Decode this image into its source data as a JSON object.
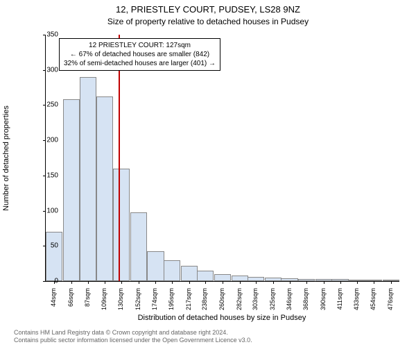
{
  "title_main": "12, PRIESTLEY COURT, PUDSEY, LS28 9NZ",
  "title_sub": "Size of property relative to detached houses in Pudsey",
  "ylabel": "Number of detached properties",
  "xlabel": "Distribution of detached houses by size in Pudsey",
  "footer_line1": "Contains HM Land Registry data © Crown copyright and database right 2024.",
  "footer_line2": "Contains public sector information licensed under the Open Government Licence v3.0.",
  "chart": {
    "type": "histogram",
    "background_color": "#ffffff",
    "bar_fill": "#d6e3f3",
    "bar_border": "#888888",
    "axis_color": "#000000",
    "marker_color": "#c00000",
    "marker_value": 127,
    "ylim": [
      0,
      350
    ],
    "ytick_step": 50,
    "yticks": [
      0,
      50,
      100,
      150,
      200,
      250,
      300,
      350
    ],
    "xlim": [
      33,
      487
    ],
    "bin_width": 21.6,
    "xtick_values": [
      44,
      66,
      87,
      109,
      130,
      152,
      174,
      195,
      217,
      238,
      260,
      282,
      303,
      325,
      346,
      368,
      390,
      411,
      433,
      454,
      476
    ],
    "xtick_labels": [
      "44sqm",
      "66sqm",
      "87sqm",
      "109sqm",
      "130sqm",
      "152sqm",
      "174sqm",
      "195sqm",
      "217sqm",
      "238sqm",
      "260sqm",
      "282sqm",
      "303sqm",
      "325sqm",
      "346sqm",
      "368sqm",
      "390sqm",
      "411sqm",
      "433sqm",
      "454sqm",
      "476sqm"
    ],
    "values": [
      70,
      258,
      290,
      262,
      160,
      98,
      42,
      30,
      22,
      15,
      10,
      8,
      6,
      5,
      4,
      3,
      3,
      3,
      2,
      2,
      2
    ],
    "label_fontsize": 11,
    "tick_fontsize": 10,
    "title_fontsize": 13,
    "annotation": {
      "lines": [
        "12 PRIESTLEY COURT: 127sqm",
        "← 67% of detached houses are smaller (842)",
        "32% of semi-detached houses are larger (401) →"
      ],
      "border_color": "#000000",
      "background_color": "#ffffff",
      "fontsize": 10
    }
  }
}
